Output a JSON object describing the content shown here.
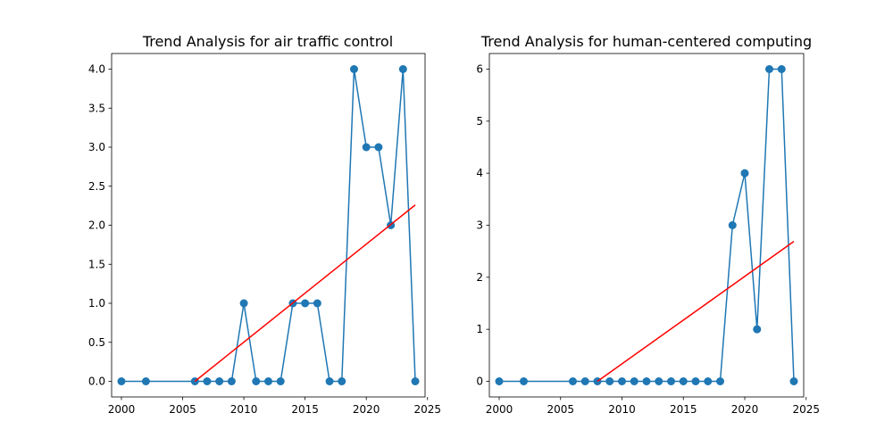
{
  "chart_data": [
    {
      "type": "line",
      "title": "Trend Analysis for air traffic control",
      "xlabel": "",
      "ylabel": "",
      "xlim": [
        1999.2,
        2024.8
      ],
      "ylim": [
        -0.2,
        4.2
      ],
      "xticks": [
        2000,
        2005,
        2010,
        2015,
        2020,
        2025
      ],
      "yticks": [
        0.0,
        0.5,
        1.0,
        1.5,
        2.0,
        2.5,
        3.0,
        3.5,
        4.0
      ],
      "ytick_labels": [
        "0.0",
        "0.5",
        "1.0",
        "1.5",
        "2.0",
        "2.5",
        "3.0",
        "3.5",
        "4.0"
      ],
      "grid": false,
      "series": [
        {
          "style": "line-with-markers",
          "color": "#1f77b4",
          "x": [
            2000,
            2002,
            2006,
            2007,
            2008,
            2009,
            2010,
            2011,
            2012,
            2013,
            2014,
            2015,
            2016,
            2017,
            2018,
            2019,
            2020,
            2021,
            2022,
            2023,
            2024
          ],
          "y": [
            0,
            0,
            0,
            0,
            0,
            0,
            1,
            0,
            0,
            0,
            1,
            1,
            1,
            0,
            0,
            4,
            3,
            3,
            2,
            4,
            0
          ]
        },
        {
          "style": "trend-line",
          "color": "#ff0000",
          "x": [
            2006,
            2024
          ],
          "y": [
            0.0,
            2.26
          ]
        }
      ]
    },
    {
      "type": "line",
      "title": "Trend Analysis for human-centered computing",
      "xlabel": "",
      "ylabel": "",
      "xlim": [
        1999.2,
        2024.8
      ],
      "ylim": [
        -0.3,
        6.3
      ],
      "xticks": [
        2000,
        2005,
        2010,
        2015,
        2020,
        2025
      ],
      "yticks": [
        0,
        1,
        2,
        3,
        4,
        5,
        6
      ],
      "ytick_labels": [
        "0",
        "1",
        "2",
        "3",
        "4",
        "5",
        "6"
      ],
      "grid": false,
      "series": [
        {
          "style": "line-with-markers",
          "color": "#1f77b4",
          "x": [
            2000,
            2002,
            2006,
            2007,
            2008,
            2009,
            2010,
            2011,
            2012,
            2013,
            2014,
            2015,
            2016,
            2017,
            2018,
            2019,
            2020,
            2021,
            2022,
            2023,
            2024
          ],
          "y": [
            0,
            0,
            0,
            0,
            0,
            0,
            0,
            0,
            0,
            0,
            0,
            0,
            0,
            0,
            0,
            3,
            4,
            1,
            6,
            6,
            0
          ]
        },
        {
          "style": "trend-line",
          "color": "#ff0000",
          "x": [
            2008,
            2024
          ],
          "y": [
            0.0,
            2.69
          ]
        }
      ]
    }
  ]
}
